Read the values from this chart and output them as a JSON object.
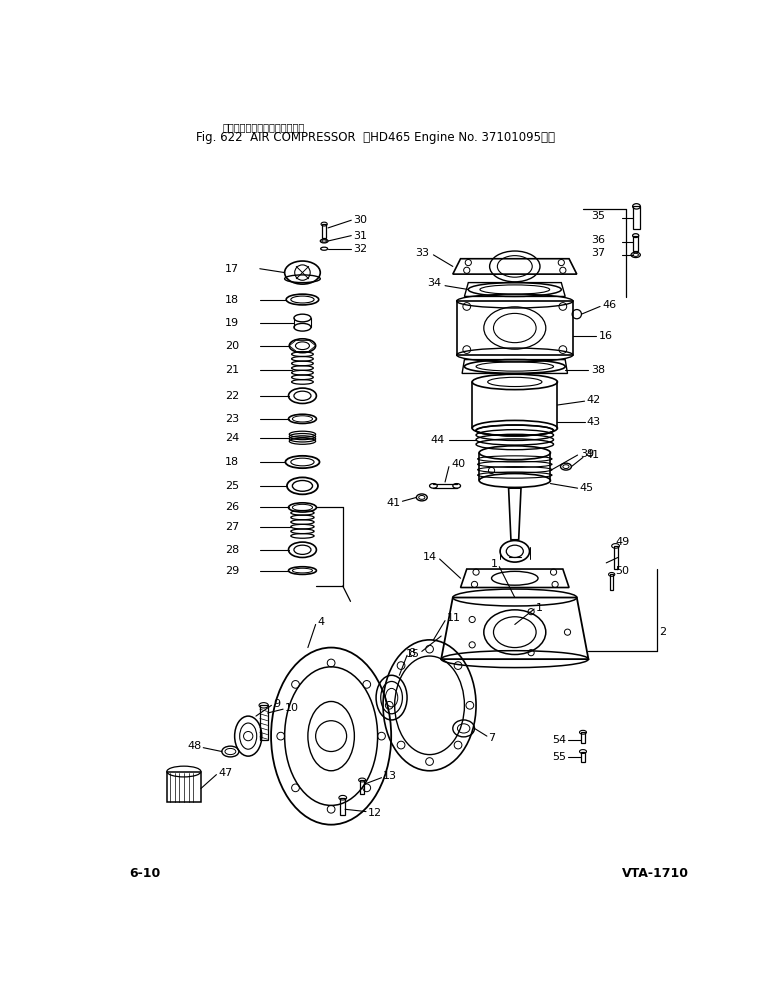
{
  "title_jp": "エアコンプレッサ　（配管図）",
  "title_en": "Fig. 622  AIR COMPRESSOR  （HD465 Engine No. 37101095～）",
  "footer_left": "6-10",
  "footer_right": "VTA-1710",
  "bg_color": "#ffffff",
  "lc": "#000000"
}
